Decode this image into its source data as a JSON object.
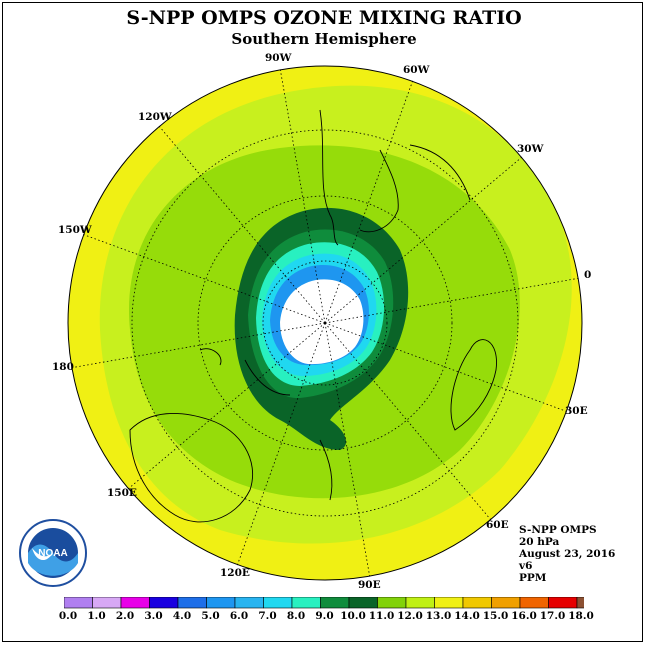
{
  "title": "S-NPP OMPS OZONE MIXING RATIO",
  "subtitle": "Southern Hemisphere",
  "longitude_labels": [
    "90W",
    "60W",
    "30W",
    "0",
    "30E",
    "60E",
    "90E",
    "120E",
    "150E",
    "180",
    "150W",
    "120W"
  ],
  "info": {
    "instrument": "S-NPP OMPS",
    "level": "20 hPa",
    "date": "August 23, 2016",
    "version": "v6",
    "units": "PPM"
  },
  "logo_text": "NOAA",
  "colorbar": {
    "labels": [
      "0.0",
      "1.0",
      "2.0",
      "3.0",
      "4.0",
      "5.0",
      "6.0",
      "7.0",
      "8.0",
      "9.0",
      "10.0",
      "11.0",
      "12.0",
      "13.0",
      "14.0",
      "15.0",
      "16.0",
      "17.0",
      "18.0"
    ],
    "colors": [
      "#b07ff0",
      "#d7a8f5",
      "#e800e8",
      "#1a00e0",
      "#1e6ee8",
      "#1e96f0",
      "#28b4f0",
      "#20d8f0",
      "#28f0c0",
      "#0f8c3c",
      "#0a6428",
      "#82d20a",
      "#c0f014",
      "#f0f014",
      "#f0c800",
      "#f0a000",
      "#f06400",
      "#e60000",
      "#8c5032"
    ]
  },
  "map_colors": {
    "outer": "#f0f014",
    "band12": "#c8f01e",
    "band11": "#96dc0a",
    "band10": "#0a6428",
    "band9": "#0f8c3c",
    "band8": "#28f0c0",
    "band7": "#20d8f0",
    "band6": "#1e96f0",
    "nodata": "#ffffff"
  }
}
